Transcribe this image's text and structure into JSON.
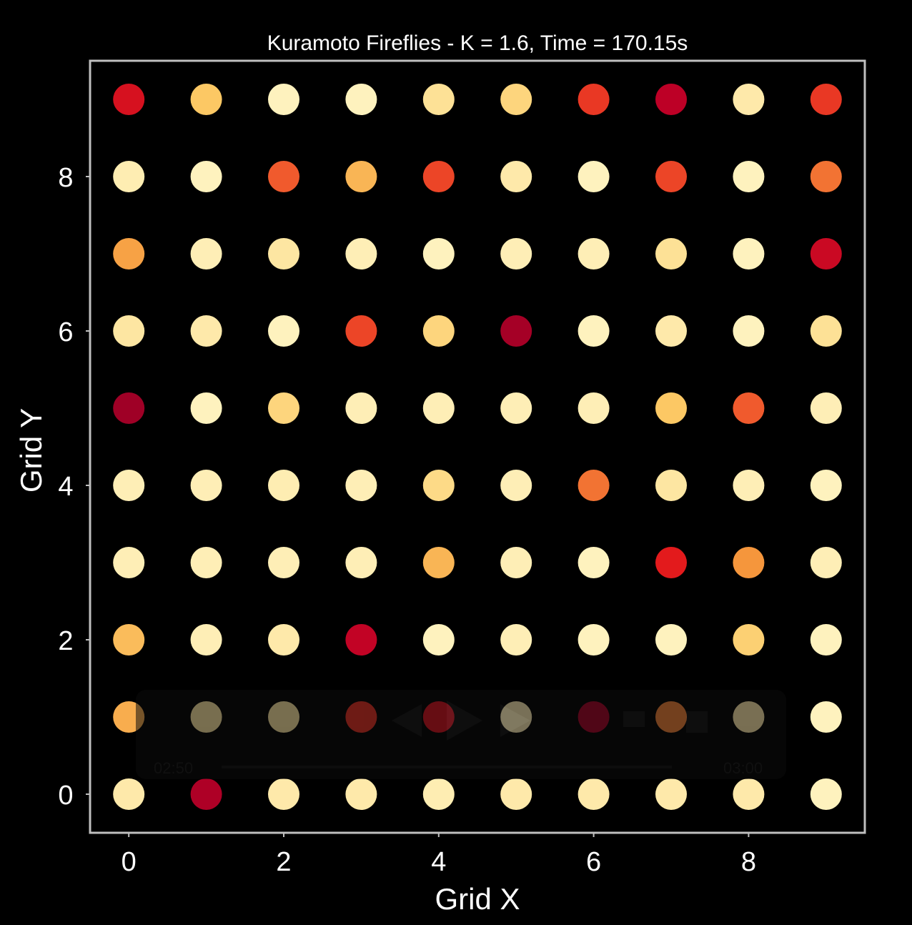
{
  "chart_data": {
    "type": "scatter",
    "title": "Kuramoto Fireflies - K = 1.6, Time = 170.15s",
    "xlabel": "Grid X",
    "ylabel": "Grid Y",
    "xlim": [
      -0.5,
      9.5
    ],
    "ylim": [
      -0.5,
      9.5
    ],
    "xticks": [
      "0",
      "2",
      "4",
      "6",
      "8"
    ],
    "yticks": [
      "0",
      "2",
      "4",
      "6",
      "8"
    ],
    "xtick_values": [
      0,
      2,
      4,
      6,
      8
    ],
    "ytick_values": [
      0,
      2,
      4,
      6,
      8
    ],
    "grid": false,
    "background": "#000000",
    "frame_color": "#bfbfbf",
    "colormap": "YlOrRd",
    "color_note": "point color = firefly brightness level 0 (dark red) to 1 (pale yellow)",
    "grid_size": [
      10,
      10
    ],
    "rows_y_descending": [
      9,
      8,
      7,
      6,
      5,
      4,
      3,
      2,
      1,
      0
    ],
    "brightness": [
      [
        0.3,
        0.75,
        0.95,
        0.95,
        0.85,
        0.8,
        0.42,
        0.2,
        0.9,
        0.42
      ],
      [
        0.92,
        0.95,
        0.5,
        0.7,
        0.45,
        0.9,
        0.95,
        0.45,
        0.95,
        0.55
      ],
      [
        0.65,
        0.93,
        0.88,
        0.93,
        0.95,
        0.93,
        0.93,
        0.85,
        0.95,
        0.25
      ],
      [
        0.88,
        0.9,
        0.95,
        0.45,
        0.8,
        0.12,
        0.95,
        0.9,
        0.95,
        0.85
      ],
      [
        0.1,
        0.95,
        0.8,
        0.93,
        0.93,
        0.93,
        0.93,
        0.75,
        0.5,
        0.93
      ],
      [
        0.93,
        0.93,
        0.92,
        0.93,
        0.82,
        0.93,
        0.55,
        0.88,
        0.93,
        0.95
      ],
      [
        0.93,
        0.93,
        0.93,
        0.93,
        0.7,
        0.93,
        0.95,
        0.35,
        0.62,
        0.93
      ],
      [
        0.72,
        0.93,
        0.9,
        0.22,
        0.95,
        0.93,
        0.95,
        0.95,
        0.78,
        0.95
      ],
      [
        0.68,
        0.88,
        0.88,
        0.4,
        0.3,
        0.93,
        0.12,
        0.58,
        0.9,
        0.95
      ],
      [
        0.9,
        0.15,
        0.9,
        0.9,
        0.92,
        0.9,
        0.9,
        0.9,
        0.9,
        0.95
      ]
    ]
  },
  "player_overlay": {
    "time_left": "02:50",
    "time_right": "03:00"
  }
}
